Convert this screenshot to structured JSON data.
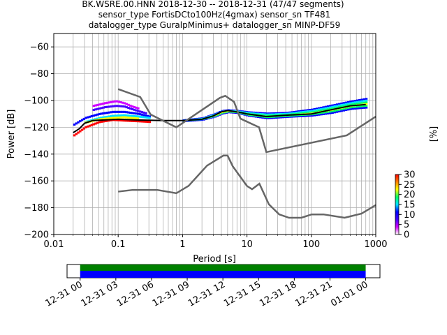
{
  "chart_data": [
    {
      "type": "heatmap",
      "title_lines": [
        "BK.WSRE.00.HNN   2018-12-30 -- 2018-12-31  (47/47 segments)",
        "sensor_type FortisDCto100Hz(4gmax) sensor_sn TF481",
        "datalogger_type GuralpMinimus+ datalogger_sn MINP-DF59"
      ],
      "xlabel": "Period [s]",
      "ylabel": "Power [dB]",
      "x_scale": "log",
      "xlim": [
        0.01,
        1000
      ],
      "ylim": [
        -200,
        -50
      ],
      "x_ticks": [
        {
          "value": 0.01,
          "label": "0.01"
        },
        {
          "value": 0.1,
          "label": "0.1"
        },
        {
          "value": 1,
          "label": "1"
        },
        {
          "value": 10,
          "label": "10"
        },
        {
          "value": 100,
          "label": "100"
        },
        {
          "value": 1000,
          "label": "1000"
        }
      ],
      "y_ticks": [
        {
          "value": -60,
          "label": "−60"
        },
        {
          "value": -80,
          "label": "−80"
        },
        {
          "value": -100,
          "label": "−100"
        },
        {
          "value": -120,
          "label": "−120"
        },
        {
          "value": -140,
          "label": "−140"
        },
        {
          "value": -160,
          "label": "−160"
        },
        {
          "value": -180,
          "label": "−180"
        },
        {
          "value": -200,
          "label": "−200"
        }
      ],
      "grid": true,
      "colorbar": {
        "label": "[%]",
        "range": [
          0,
          30
        ],
        "ticks": [
          {
            "value": 0,
            "label": "0"
          },
          {
            "value": 5,
            "label": "5"
          },
          {
            "value": 10,
            "label": "10"
          },
          {
            "value": 15,
            "label": "15"
          },
          {
            "value": 20,
            "label": "20"
          },
          {
            "value": 25,
            "label": "25"
          },
          {
            "value": 30,
            "label": "30"
          }
        ],
        "colors": [
          "#ffffff",
          "#d000ff",
          "#4400ff",
          "#0000ff",
          "#00e0ff",
          "#00ff60",
          "#ffff00",
          "#ff8000",
          "#ff0000"
        ]
      },
      "noise_models": [
        {
          "name": "NHNM",
          "color": "#666666",
          "x": [
            0.1,
            0.22,
            0.32,
            0.8,
            3.8,
            4.6,
            6.3,
            7.9,
            15.4,
            20,
            354.8,
            1000
          ],
          "y": [
            -91.5,
            -97.4,
            -110.5,
            -120,
            -98,
            -96.5,
            -101,
            -113.5,
            -120,
            -138.5,
            -126,
            -112
          ]
        },
        {
          "name": "NLNM",
          "color": "#666666",
          "x": [
            0.1,
            0.17,
            0.4,
            0.8,
            1.24,
            2.4,
            4.3,
            5,
            6,
            10,
            12,
            15.6,
            21.9,
            31.6,
            45,
            70,
            101,
            154,
            328,
            600,
            1000
          ],
          "y": [
            -168,
            -166.7,
            -166.7,
            -169.2,
            -163.7,
            -148.6,
            -141.1,
            -141.1,
            -149,
            -163.8,
            -166.2,
            -162.1,
            -177.5,
            -185,
            -187.5,
            -187.5,
            -185,
            -185,
            -187.5,
            -184.4,
            -178
          ]
        }
      ],
      "psd_layers": [
        {
          "color": "#d000ff",
          "x": [
            0.04,
            0.06,
            0.09,
            0.12,
            0.16,
            0.2
          ],
          "y": [
            -104,
            -102,
            -100.5,
            -102,
            -104.5,
            -106
          ]
        },
        {
          "color": "#4400ff",
          "x": [
            0.04,
            0.06,
            0.09,
            0.12,
            0.16,
            0.2,
            0.26
          ],
          "y": [
            -107,
            -105,
            -104,
            -104.5,
            -106.5,
            -108,
            -109.5
          ]
        },
        {
          "color": "#0000ff",
          "x": [
            0.02,
            0.03,
            0.05,
            0.08,
            0.12,
            0.2,
            0.3
          ],
          "y": [
            -118,
            -113,
            -110,
            -108.5,
            -108.5,
            -110,
            -112
          ]
        },
        {
          "color": "#00e0ff",
          "x": [
            0.03,
            0.05,
            0.08,
            0.12,
            0.2,
            0.3
          ],
          "y": [
            -116,
            -113,
            -111.5,
            -111,
            -112,
            -113
          ]
        },
        {
          "color": "#ffff00",
          "x": [
            0.03,
            0.05,
            0.08,
            0.12,
            0.2
          ],
          "y": [
            -116.5,
            -114,
            -113,
            -112.5,
            -113.5
          ]
        },
        {
          "color": "#ff0000",
          "x": [
            0.02,
            0.03,
            0.05,
            0.08,
            0.12,
            0.2,
            0.3
          ],
          "y": [
            -126,
            -120,
            -116,
            -114.5,
            -115,
            -115.5,
            -116
          ]
        }
      ],
      "median_curve": {
        "color": "#000000",
        "x": [
          0.02,
          0.025,
          0.03,
          0.04,
          0.06,
          0.1,
          0.2,
          0.5,
          1,
          2,
          3,
          4,
          5,
          6,
          8,
          10,
          20,
          40,
          100,
          200,
          400,
          700
        ],
        "y": [
          -124,
          -121,
          -117,
          -115,
          -114.5,
          -114,
          -114.5,
          -115,
          -115,
          -114,
          -111.5,
          -108.5,
          -107.5,
          -108,
          -109,
          -110,
          -112,
          -111,
          -110,
          -107,
          -104,
          -103
        ]
      },
      "band_upper": {
        "x": [
          1,
          2,
          3,
          4,
          5,
          7,
          10,
          20,
          40,
          100,
          200,
          400,
          700
        ],
        "y": [
          -114,
          -112.5,
          -109.5,
          -107,
          -106.5,
          -107,
          -108,
          -109,
          -108.5,
          -106,
          -103,
          -100,
          -98
        ]
      },
      "band_lower": {
        "x": [
          1,
          2,
          3,
          4,
          5,
          7,
          10,
          20,
          40,
          100,
          200,
          400,
          700
        ],
        "y": [
          -116,
          -115,
          -113,
          -110.5,
          -109.5,
          -110,
          -112,
          -114,
          -113,
          -112,
          -110,
          -107,
          -106
        ]
      }
    },
    {
      "type": "timeline",
      "x_ticks": [
        "12-31 00",
        "12-31 03",
        "12-31 06",
        "12-31 09",
        "12-31 12",
        "12-31 15",
        "12-31 18",
        "12-31 21",
        "01-01 00"
      ],
      "span_hours": [
        -1.1,
        25.2
      ],
      "bars": [
        {
          "name": "data",
          "color": "#008000",
          "start_hour": 0,
          "end_hour": 24
        },
        {
          "name": "used",
          "color": "#0000ff",
          "start_hour": 0,
          "end_hour": 24
        }
      ]
    }
  ]
}
